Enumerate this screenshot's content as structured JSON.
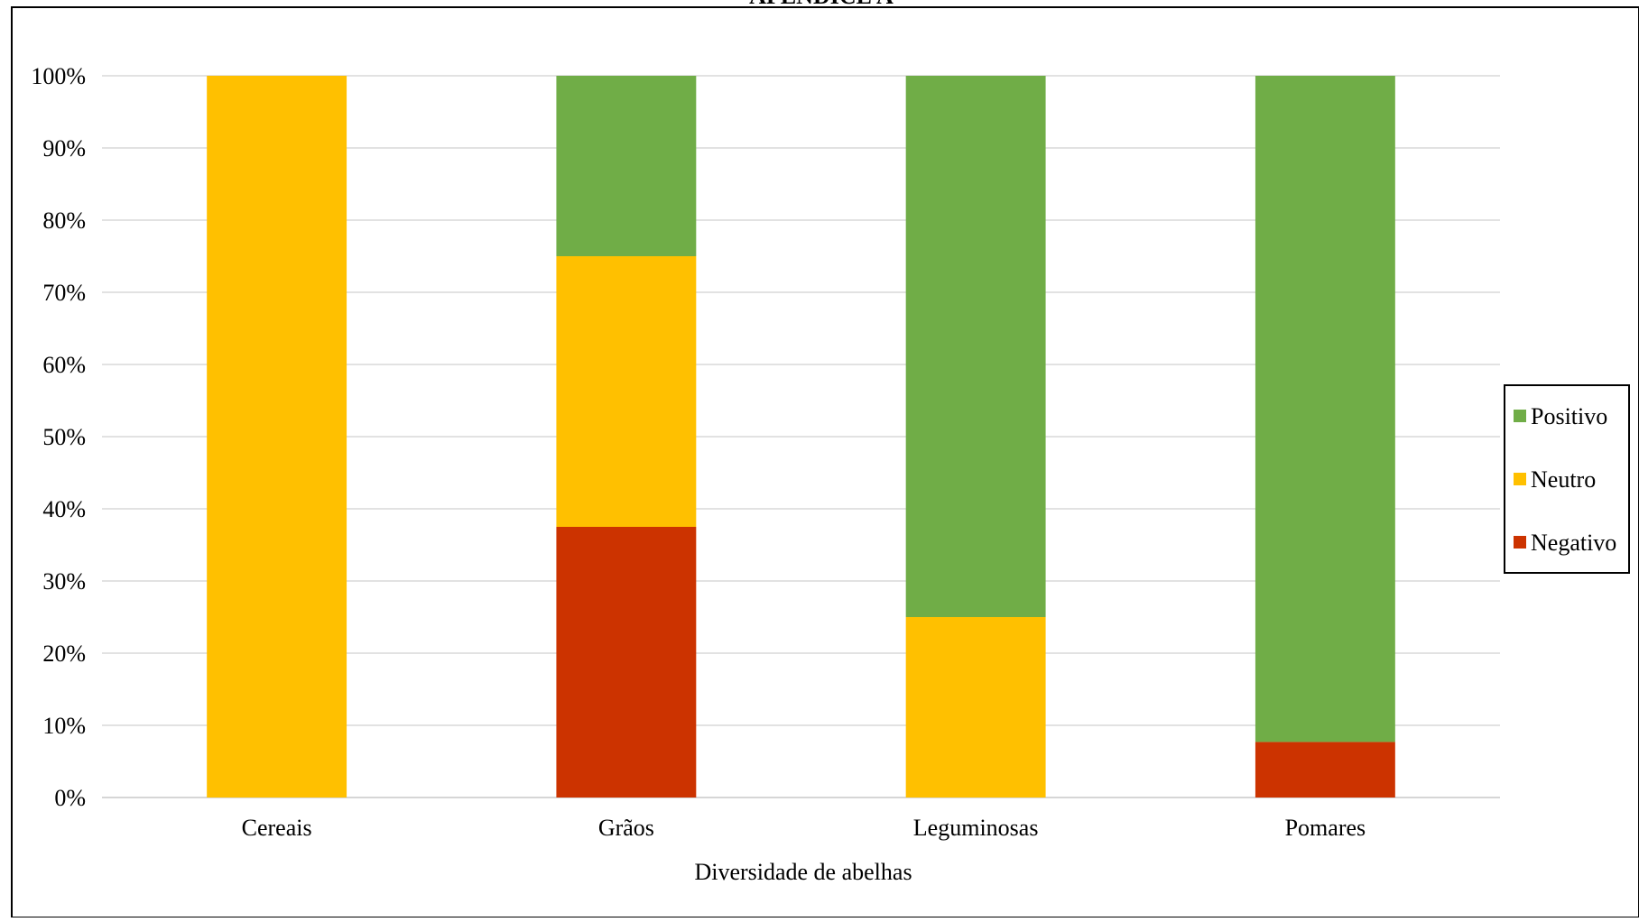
{
  "page_title": "APÊNDICE A",
  "chart_data": {
    "type": "bar",
    "stacked": true,
    "percent_stacked": true,
    "title": "",
    "xlabel": "Diversidade de abelhas",
    "ylabel": "",
    "categories": [
      "Cereais",
      "Grãos",
      "Leguminosas",
      "Pomares"
    ],
    "series": [
      {
        "name": "Negativo",
        "color": "#CC3300",
        "values": [
          0,
          37.5,
          0,
          7.7
        ]
      },
      {
        "name": "Neutro",
        "color": "#FFC000",
        "values": [
          100,
          37.5,
          25,
          0
        ]
      },
      {
        "name": "Positivo",
        "color": "#70AD47",
        "values": [
          0,
          25,
          75,
          92.3
        ]
      }
    ],
    "ylim": [
      0,
      100
    ],
    "yticks": [
      "0%",
      "10%",
      "20%",
      "30%",
      "40%",
      "50%",
      "60%",
      "70%",
      "80%",
      "90%",
      "100%"
    ],
    "grid": true,
    "legend": {
      "position": "right",
      "order": [
        "Positivo",
        "Neutro",
        "Negativo"
      ]
    }
  }
}
